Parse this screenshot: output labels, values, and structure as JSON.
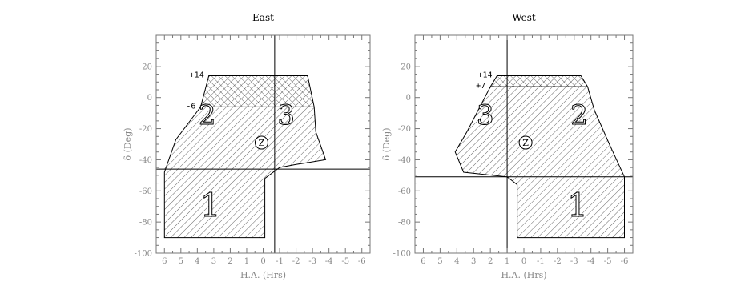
{
  "chart_data": [
    {
      "type": "region",
      "title": "East",
      "xlabel": "H.A. (Hrs)",
      "ylabel": "δ (Deg)",
      "xlim": [
        6.5,
        -6.5
      ],
      "ylim": [
        -100,
        40
      ],
      "xticks": [
        6,
        5,
        4,
        3,
        2,
        1,
        0,
        -1,
        -2,
        -3,
        -4,
        -5,
        -6
      ],
      "yticks": [
        20,
        0,
        -20,
        -40,
        -60,
        -80,
        -100
      ],
      "grid": false,
      "reference_lines": {
        "vertical_x": -0.7,
        "horizontal_y": -46
      },
      "zenith": {
        "label": "Z",
        "x": 0.1,
        "y": -29
      },
      "declination_labels": [
        {
          "text": "+14",
          "y": 14
        },
        {
          "text": "-6",
          "y": -6
        }
      ],
      "zones": [
        {
          "name": "cross-hatched",
          "polygon": [
            [
              3.3,
              14
            ],
            [
              -2.7,
              14
            ],
            [
              -3.1,
              -6
            ],
            [
              3.8,
              -6
            ]
          ]
        },
        {
          "name": "2",
          "label_at": [
            3.4,
            -11
          ],
          "polygon": [
            [
              3.8,
              -6
            ],
            [
              -0.7,
              -6
            ],
            [
              -0.7,
              -46
            ],
            [
              6.0,
              -46
            ],
            [
              5.3,
              -27
            ],
            [
              4.3,
              -13
            ]
          ]
        },
        {
          "name": "3",
          "label_at": [
            -1.4,
            -11
          ],
          "polygon": [
            [
              -0.7,
              -6
            ],
            [
              -3.1,
              -6
            ],
            [
              -3.2,
              -22
            ],
            [
              -3.8,
              -40
            ],
            [
              -1.4,
              -44
            ],
            [
              -0.7,
              -46
            ]
          ]
        },
        {
          "name": "1",
          "label_at": [
            3.2,
            -69
          ],
          "polygon": [
            [
              6.0,
              -46
            ],
            [
              -0.7,
              -46
            ],
            [
              -0.1,
              -52
            ],
            [
              -0.1,
              -90
            ],
            [
              6.0,
              -90
            ]
          ]
        }
      ],
      "outline": [
        [
          3.3,
          14
        ],
        [
          -2.7,
          14
        ],
        [
          -3.1,
          -6
        ],
        [
          -3.2,
          -22
        ],
        [
          -3.8,
          -40
        ],
        [
          -2.0,
          -43
        ],
        [
          -1.0,
          -45
        ],
        [
          -0.1,
          -52
        ],
        [
          -0.1,
          -90
        ],
        [
          6.0,
          -90
        ],
        [
          6.0,
          -48
        ],
        [
          5.3,
          -27
        ],
        [
          4.3,
          -13
        ],
        [
          3.8,
          -6
        ]
      ]
    },
    {
      "type": "region",
      "title": "West",
      "xlabel": "H.A. (Hrs)",
      "ylabel": "δ (Deg)",
      "xlim": [
        6.5,
        -6.5
      ],
      "ylim": [
        -100,
        40
      ],
      "xticks": [
        6,
        5,
        4,
        3,
        2,
        1,
        0,
        -1,
        -2,
        -3,
        -4,
        -5,
        -6
      ],
      "yticks": [
        20,
        0,
        -20,
        -40,
        -60,
        -80,
        -100
      ],
      "grid": false,
      "reference_lines": {
        "vertical_x": 1.0,
        "horizontal_y": -51
      },
      "zenith": {
        "label": "Z",
        "x": -0.1,
        "y": -29
      },
      "declination_labels": [
        {
          "text": "+14",
          "y": 14
        },
        {
          "text": "+7",
          "y": 7
        }
      ],
      "zones": [
        {
          "name": "cross-hatched",
          "polygon": [
            [
              1.6,
              14
            ],
            [
              -3.4,
              14
            ],
            [
              -3.8,
              7
            ],
            [
              2.0,
              7
            ]
          ]
        },
        {
          "name": "3",
          "label_at": [
            2.3,
            -11
          ],
          "polygon": [
            [
              2.0,
              7
            ],
            [
              1.0,
              7
            ],
            [
              1.0,
              -51
            ],
            [
              3.6,
              -48
            ],
            [
              4.1,
              -35
            ],
            [
              3.4,
              -22
            ]
          ]
        },
        {
          "name": "2",
          "label_at": [
            -3.3,
            -11
          ],
          "polygon": [
            [
              1.0,
              7
            ],
            [
              -3.8,
              7
            ],
            [
              -4.2,
              -8
            ],
            [
              -5.1,
              -30
            ],
            [
              -6.0,
              -51
            ],
            [
              1.0,
              -51
            ]
          ]
        },
        {
          "name": "1",
          "label_at": [
            -3.2,
            -69
          ],
          "polygon": [
            [
              1.0,
              -51
            ],
            [
              -6.0,
              -51
            ],
            [
              -6.0,
              -90
            ],
            [
              0.4,
              -90
            ],
            [
              0.4,
              -56
            ]
          ]
        }
      ],
      "outline": [
        [
          1.6,
          14
        ],
        [
          -3.4,
          14
        ],
        [
          -3.8,
          7
        ],
        [
          -4.2,
          -8
        ],
        [
          -5.1,
          -30
        ],
        [
          -6.0,
          -51
        ],
        [
          -6.0,
          -90
        ],
        [
          0.4,
          -90
        ],
        [
          0.4,
          -56
        ],
        [
          1.0,
          -51
        ],
        [
          3.6,
          -48
        ],
        [
          4.1,
          -35
        ],
        [
          3.4,
          -22
        ],
        [
          2.0,
          7
        ]
      ]
    }
  ]
}
